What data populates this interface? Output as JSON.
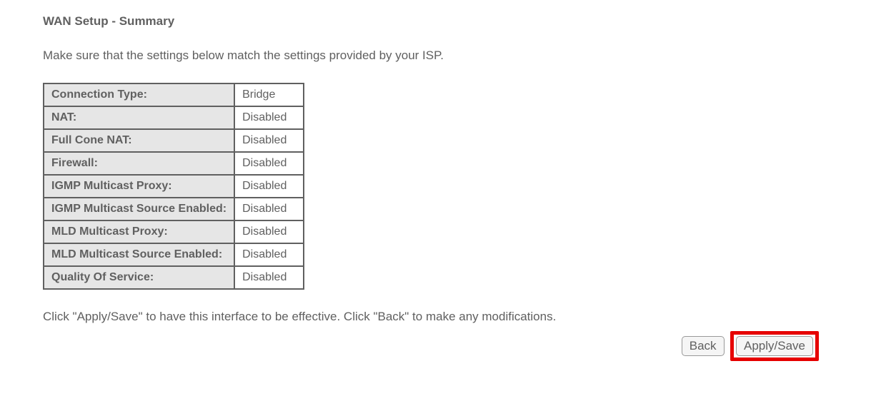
{
  "page_title": "WAN Setup - Summary",
  "instruction": "Make sure that the settings below match the settings provided by your ISP.",
  "rows": [
    {
      "label": "Connection Type:",
      "value": "Bridge"
    },
    {
      "label": "NAT:",
      "value": "Disabled"
    },
    {
      "label": "Full Cone NAT:",
      "value": "Disabled"
    },
    {
      "label": "Firewall:",
      "value": "Disabled"
    },
    {
      "label": "IGMP Multicast Proxy:",
      "value": "Disabled"
    },
    {
      "label": "IGMP Multicast Source Enabled:",
      "value": "Disabled"
    },
    {
      "label": "MLD Multicast Proxy:",
      "value": "Disabled"
    },
    {
      "label": "MLD Multicast Source Enabled:",
      "value": "Disabled"
    },
    {
      "label": "Quality Of Service:",
      "value": "Disabled"
    }
  ],
  "footer_text": "Click \"Apply/Save\" to have this interface to be effective. Click \"Back\" to make any modifications.",
  "buttons": {
    "back": "Back",
    "apply_save": "Apply/Save"
  },
  "colors": {
    "text": "#606060",
    "table_border": "#606060",
    "label_bg": "#e6e6e6",
    "highlight_border": "#e60000",
    "page_bg": "#ffffff"
  }
}
